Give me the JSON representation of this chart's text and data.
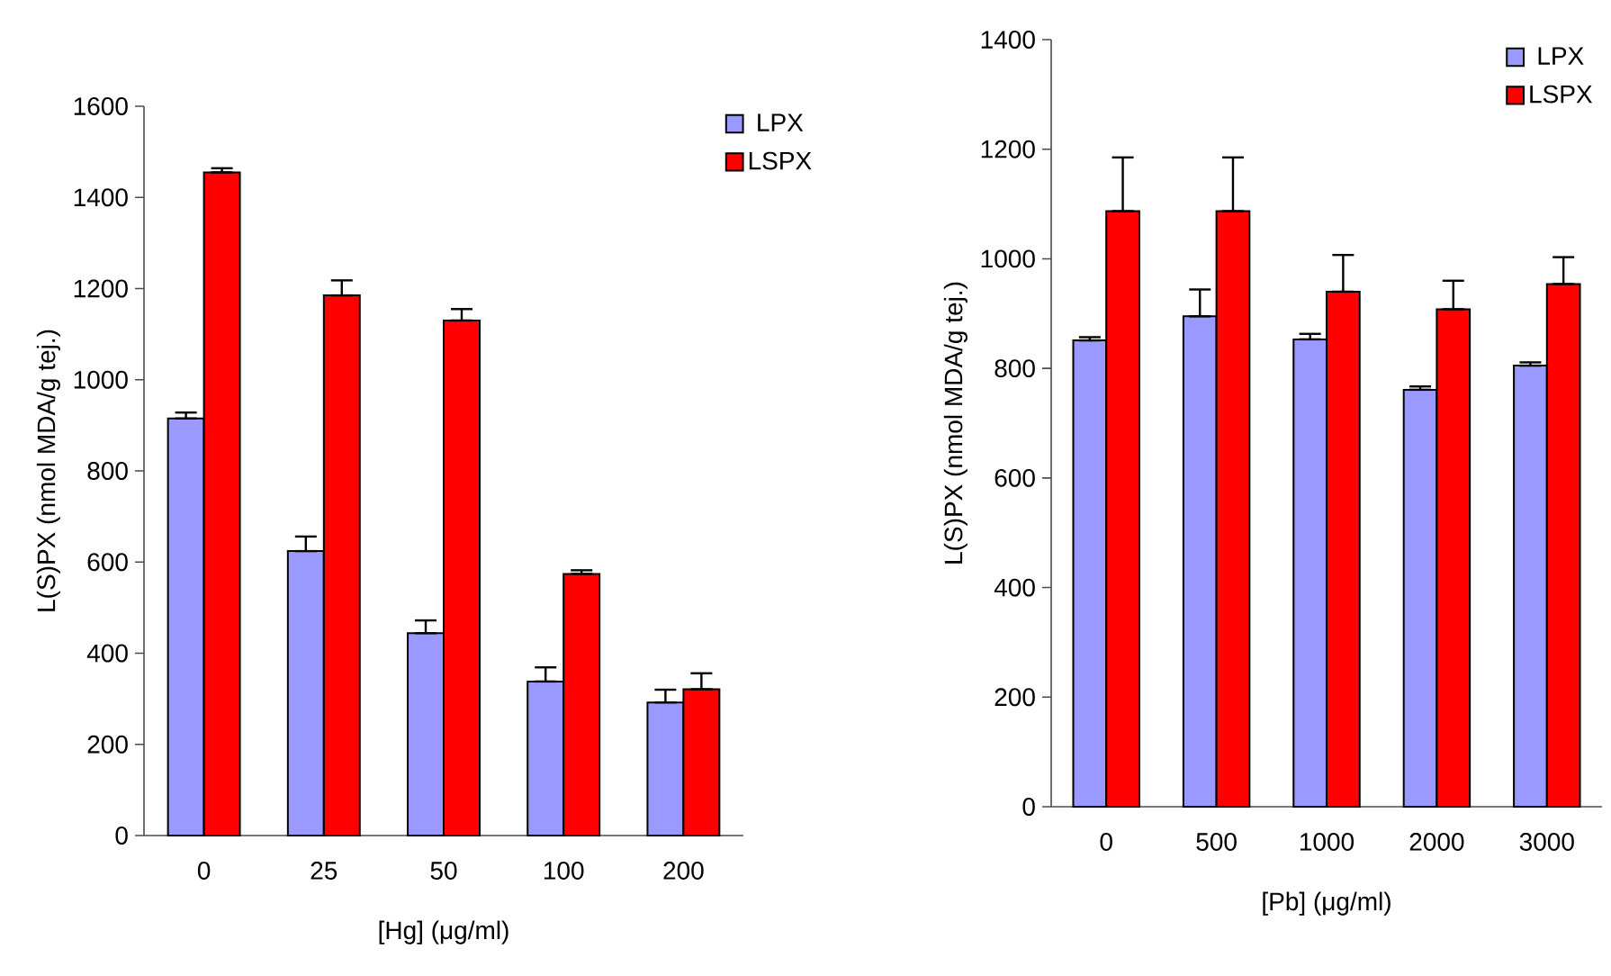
{
  "chart_data": [
    {
      "type": "bar",
      "xlabel": "[Hg] (μg/ml)",
      "ylabel": "L(S)PX (nmol MDA/g tej.)",
      "categories": [
        "0",
        "25",
        "50",
        "100",
        "200"
      ],
      "ylim": [
        0,
        1600
      ],
      "yticks": [
        0,
        200,
        400,
        600,
        800,
        1000,
        1200,
        1400,
        1600
      ],
      "grid": false,
      "legend": "top right",
      "series": [
        {
          "name": "LPX",
          "color": "#9999ff",
          "values": [
            915,
            624,
            444,
            338,
            292
          ],
          "errors": [
            [
              915,
              928
            ],
            [
              624,
              656
            ],
            [
              444,
              472
            ],
            [
              338,
              369
            ],
            [
              292,
              320
            ]
          ]
        },
        {
          "name": "LSPX",
          "color": "#ff0000",
          "values": [
            1455,
            1185,
            1130,
            574,
            321
          ],
          "errors": [
            [
              1455,
              1464
            ],
            [
              1185,
              1218
            ],
            [
              1130,
              1155
            ],
            [
              574,
              582
            ],
            [
              321,
              356
            ]
          ]
        }
      ]
    },
    {
      "type": "bar",
      "xlabel": "[Pb] (μg/ml)",
      "ylabel": "L(S)PX (nmol MDA/g tej.)",
      "categories": [
        "0",
        "500",
        "1000",
        "2000",
        "3000"
      ],
      "ylim": [
        0,
        1400
      ],
      "yticks": [
        0,
        200,
        400,
        600,
        800,
        1000,
        1200,
        1400
      ],
      "grid": false,
      "legend": "top right",
      "series": [
        {
          "name": "LPX",
          "color": "#9999ff",
          "values": [
            851,
            895,
            853,
            761,
            805
          ],
          "errors": [
            [
              851,
              857
            ],
            [
              895,
              944
            ],
            [
              853,
              863
            ],
            [
              761,
              767
            ],
            [
              805,
              811
            ]
          ]
        },
        {
          "name": "LSPX",
          "color": "#ff0000",
          "values": [
            1087,
            1087,
            940,
            908,
            954
          ],
          "errors": [
            [
              1087,
              1185
            ],
            [
              1087,
              1185
            ],
            [
              940,
              1007
            ],
            [
              908,
              960
            ],
            [
              954,
              1003
            ]
          ]
        }
      ]
    }
  ]
}
